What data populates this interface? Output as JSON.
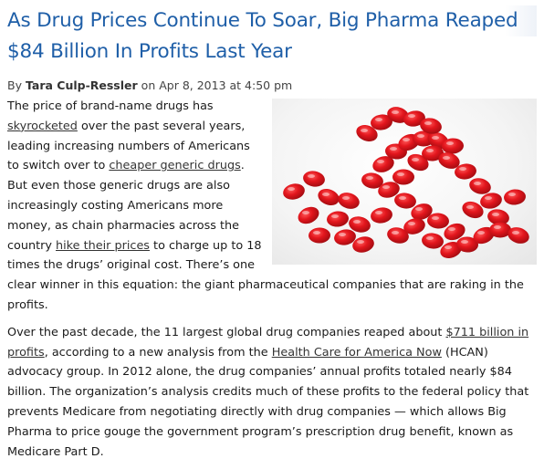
{
  "article": {
    "title_line1": "As Drug Prices Continue To Soar, Big Pharma Reaped",
    "title_line2": "$84 Billion In Profits Last Year",
    "byline": {
      "by": "By",
      "author": "Tara Culp-Ressler",
      "date": "on Apr 8, 2013 at 4:50 pm"
    },
    "p1": {
      "t1": "The price of brand-name drugs has ",
      "link1": "skyrocketed",
      "t2": " over the past several years, leading increasing numbers of Americans to switch over to ",
      "link2": "cheaper generic drugs",
      "t3": ". But even those generic drugs are also increasingly costing Americans more money, as chain pharmacies across the country ",
      "link3": "hike their prices",
      "t4": " to charge up to 18 times the drugs’ original cost. There’s one clear winner in this equation: the giant pharmaceutical companies that are raking in the profits."
    },
    "p2": {
      "t1": "Over the past decade, the 11 largest global drug companies reaped about ",
      "link1": "$711 billion in profits",
      "t2": ", according to a new analysis from the ",
      "link2": "Health Care for America Now",
      "t3": " (HCAN) advocacy group. In 2012 alone, the drug companies’ annual profits totaled nearly $84 billion. The organization’s analysis credits much of these profits to the federal policy that prevents Medicare from negotiating directly with drug companies — which allows Big Pharma to price gouge the government program’s prescription drug benefit, known as Medicare Part D."
    }
  },
  "image": {
    "icon": "red-pills-dollar-sign-photo",
    "pill_color": "#d9141b"
  }
}
